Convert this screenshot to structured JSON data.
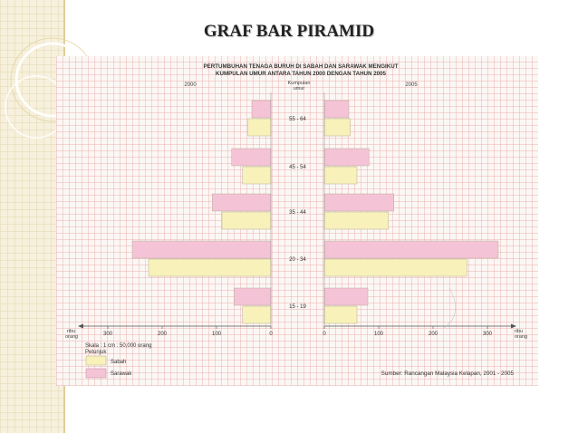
{
  "slide": {
    "title": "GRAF BAR PIRAMID"
  },
  "chart_data": {
    "type": "bar",
    "orientation": "horizontal-pyramid",
    "title_line1": "PERTUMBUHAN TENAGA BURUH DI SABAH DAN SARAWAK MENGIKUT",
    "title_line2": "KUMPULAN UMUR ANTARA TAHUN 2000 DENGAN TAHUN 2005",
    "left_label": "2000",
    "right_label": "2005",
    "center_label_line1": "Kumpulan",
    "center_label_line2": "umur",
    "categories": [
      "55 - 64",
      "45 - 54",
      "35 - 44",
      "20 - 34",
      "15 - 19"
    ],
    "unit_label_line1": "ribu",
    "unit_label_line2": "orang",
    "left_ticks": [
      "300",
      "200",
      "100",
      "0"
    ],
    "right_ticks": [
      "0",
      "100",
      "200",
      "300"
    ],
    "xlim": [
      0,
      340
    ],
    "series": [
      {
        "name": "Sabah",
        "color": "#f8f1b9",
        "values_2000": [
          42,
          52,
          90,
          225,
          52
        ],
        "values_2005": [
          48,
          60,
          118,
          262,
          60
        ]
      },
      {
        "name": "Sarawak",
        "color": "#f5c3d6",
        "values_2000": [
          35,
          72,
          108,
          255,
          68
        ],
        "values_2005": [
          45,
          82,
          128,
          320,
          80
        ]
      }
    ],
    "scale_text": "Skala : 1 cm : 50,000 orang",
    "legend_title": "Petunjuk",
    "legend_position": "bottom-left",
    "source": "Sumber: Rancangan Malaysia Kelapan, 2001 - 2005",
    "grid": true
  }
}
